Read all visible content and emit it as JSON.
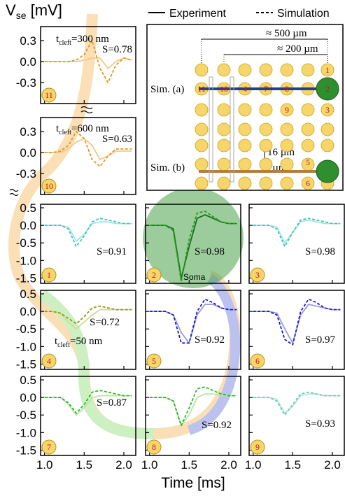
{
  "chart_data": {
    "type": "line",
    "ylabel": {
      "main": "V",
      "sub": "se",
      "unit": " [mV]"
    },
    "xlabel": "Time [ms]",
    "legend": {
      "solid": "Experiment",
      "dashed": "Simulation"
    },
    "x": [
      1.0,
      1.1,
      1.2,
      1.3,
      1.4,
      1.5,
      1.6,
      1.7,
      1.8,
      1.9,
      2.0,
      2.1
    ],
    "xlim": [
      0.95,
      2.15
    ],
    "xticks": [
      {
        "value": 1.0,
        "label": "1.0"
      },
      1.5,
      {
        "value": 2.0,
        "label": "2.0"
      }
    ],
    "top_axes": {
      "ylim": [
        -0.6,
        0.5
      ],
      "yticks": [
        0.3,
        {
          "value": 0,
          "label": "0.0"
        },
        -0.3
      ]
    },
    "grid_axes": {
      "ylim": [
        -1.65,
        0.6
      ],
      "yticks": [
        0.5,
        {
          "value": 0,
          "label": "0.0"
        },
        -0.5,
        {
          "value": -1,
          "label": "-1.0"
        },
        -1.5
      ]
    },
    "soma_label": "Soma",
    "panels": [
      {
        "number": "11",
        "annotation": "S=0.78",
        "note": {
          "main": "t",
          "sub": "cleft",
          "rest": "=300 nm"
        },
        "exp_color": "#f2c987",
        "sim_color": "#e8961c",
        "experiment": [
          0,
          0,
          0,
          0,
          0,
          0.02,
          0.05,
          0.05,
          -0.1,
          0.0,
          0.05,
          0.02
        ],
        "simulation": [
          0,
          0,
          0,
          0,
          0.02,
          0.1,
          0.3,
          -0.1,
          -0.3,
          -0.05,
          0.05,
          0.02
        ]
      },
      {
        "number": "10",
        "annotation": "S=0.63",
        "note": {
          "main": "t",
          "sub": "cleft",
          "rest": "=600 nm"
        },
        "exp_color": "#f2c987",
        "sim_color": "#e8961c",
        "experiment": [
          0,
          0,
          0,
          0.05,
          0.15,
          0.2,
          0.1,
          -0.1,
          -0.05,
          0.02,
          0.02,
          0.02
        ],
        "simulation": [
          0,
          0,
          0.02,
          0.1,
          0.3,
          0.2,
          -0.1,
          -0.2,
          -0.05,
          0.05,
          0.05,
          0.05
        ]
      },
      {
        "number": "1",
        "annotation": "S=0.91",
        "exp_color": "#a8e4e0",
        "sim_color": "#3cc4c0",
        "experiment": [
          0,
          0,
          0,
          -0.05,
          -0.45,
          -0.25,
          0.05,
          0.1,
          0.1,
          0.05,
          0.05,
          0.05
        ],
        "simulation": [
          0,
          0,
          0,
          -0.1,
          -0.6,
          -0.3,
          0.1,
          0.2,
          0.15,
          0.1,
          0.05,
          0.05
        ]
      },
      {
        "number": "2",
        "annotation": "S=0.98",
        "exp_color": "#1c6e1c",
        "sim_color": "#1fa01f",
        "experiment": [
          0,
          0,
          0,
          -0.1,
          -1.5,
          -0.6,
          0.2,
          0.3,
          0.2,
          0.1,
          0.05,
          0.05
        ],
        "simulation": [
          0,
          0,
          0,
          -0.15,
          -1.6,
          -0.4,
          0.35,
          0.4,
          0.25,
          0.1,
          0.05,
          0.05
        ]
      },
      {
        "number": "3",
        "annotation": "S=0.98",
        "exp_color": "#a8e4e0",
        "sim_color": "#3cc4c0",
        "experiment": [
          0,
          0,
          0,
          -0.05,
          -0.5,
          -0.2,
          0.1,
          0.15,
          0.1,
          0.05,
          0.05,
          0.05
        ],
        "simulation": [
          0,
          0,
          0,
          -0.1,
          -0.6,
          -0.2,
          0.15,
          0.2,
          0.15,
          0.1,
          0.05,
          0.05
        ]
      },
      {
        "number": "4",
        "annotation": "S=0.72",
        "note": {
          "main": "t",
          "sub": "cleft",
          "rest": "=50 nm"
        },
        "exp_color": "#d8d890",
        "sim_color": "#8a9a1a",
        "experiment": [
          0,
          0,
          -0.05,
          -0.3,
          -0.5,
          -0.3,
          -0.1,
          0.05,
          0.05,
          0.05,
          0.05,
          0.05
        ],
        "simulation": [
          0,
          0,
          -0.05,
          -0.2,
          -0.35,
          -0.15,
          0.1,
          0.15,
          0.1,
          0.05,
          0.05,
          0.05
        ]
      },
      {
        "number": "5",
        "annotation": "S=0.92",
        "exp_color": "#9a9ae0",
        "sim_color": "#1a1acc",
        "experiment": [
          0,
          0,
          0,
          -0.1,
          -0.6,
          -0.9,
          -0.1,
          0.2,
          0.2,
          0.1,
          0.05,
          0.05
        ],
        "simulation": [
          0,
          0,
          0,
          -0.1,
          -0.9,
          -0.9,
          0.0,
          0.35,
          0.25,
          0.1,
          0.05,
          0.05
        ]
      },
      {
        "number": "6",
        "annotation": "S=0.97",
        "exp_color": "#9a9ae0",
        "sim_color": "#1a1acc",
        "experiment": [
          0,
          0,
          0,
          -0.05,
          -0.5,
          -0.9,
          -0.1,
          0.2,
          0.15,
          0.1,
          0.05,
          0.05
        ],
        "simulation": [
          0,
          0,
          0,
          -0.1,
          -0.8,
          -0.95,
          0,
          0.35,
          0.25,
          0.1,
          0.05,
          0.05
        ]
      },
      {
        "number": "7",
        "annotation": "S=0.87",
        "exp_color": "#b8e6a0",
        "sim_color": "#22bb22",
        "experiment": [
          0,
          0,
          0,
          -0.2,
          -0.5,
          -0.3,
          0,
          0.05,
          0.05,
          0.05,
          0.05,
          0.05
        ],
        "simulation": [
          0,
          0,
          0,
          -0.15,
          -0.45,
          -0.2,
          0.15,
          0.2,
          0.15,
          0.1,
          0.05,
          0.05
        ]
      },
      {
        "number": "8",
        "annotation": "S=0.92",
        "exp_color": "#b8e6a0",
        "sim_color": "#22bb22",
        "experiment": [
          0,
          0,
          0,
          -0.1,
          -0.8,
          -0.5,
          0,
          0.1,
          0.1,
          0.05,
          0.05,
          0.05
        ],
        "simulation": [
          0,
          0,
          0,
          -0.1,
          -0.8,
          -0.3,
          0.25,
          0.3,
          0.2,
          0.1,
          0.05,
          0.05
        ]
      },
      {
        "number": "9",
        "annotation": "S=0.93",
        "exp_color": "#b8e6dc",
        "sim_color": "#66ccbb",
        "experiment": [
          0,
          0,
          0,
          -0.05,
          -0.45,
          -0.25,
          0.05,
          0.1,
          0.1,
          0.05,
          0.05,
          0.05
        ],
        "simulation": [
          0,
          0,
          0,
          -0.1,
          -0.5,
          -0.2,
          0.1,
          0.15,
          0.1,
          0.05,
          0.05,
          0.05
        ]
      }
    ],
    "inset": {
      "span_long": "≈ 500 µm",
      "span_short": "≈ 200 µm",
      "sim_a": "Sim. (a)",
      "sim_b": "Sim. (b)",
      "pitch": "16 µm",
      "gap": "8 µm",
      "cell_labels": [
        "1",
        "2",
        "3",
        "4",
        "5",
        "6",
        "7",
        "8",
        "9",
        "10",
        "11"
      ]
    }
  }
}
